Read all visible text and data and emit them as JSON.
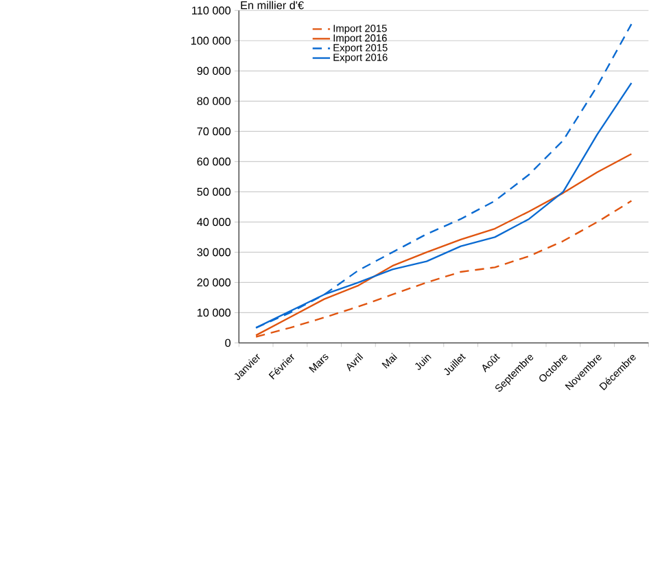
{
  "chart_data": {
    "type": "line",
    "ylabel": "En millier d'€",
    "categories": [
      "Janvier",
      "Février",
      "Mars",
      "Avril",
      "Mai",
      "Juin",
      "Juillet",
      "Août",
      "Septembre",
      "Octobre",
      "Novembre",
      "Décembre"
    ],
    "series": [
      {
        "name": "Import 2015",
        "color": "#e0540f",
        "line_style": "dashed",
        "values": [
          2000,
          5000,
          8400,
          12000,
          16000,
          20000,
          23500,
          25000,
          28700,
          33700,
          40000,
          47000
        ]
      },
      {
        "name": "Import 2016",
        "color": "#e0540f",
        "line_style": "solid",
        "values": [
          2500,
          8500,
          14500,
          19000,
          25500,
          30000,
          34200,
          37800,
          43500,
          49600,
          56500,
          62500
        ]
      },
      {
        "name": "Export 2015",
        "color": "#0a6ad1",
        "line_style": "dashed",
        "values": [
          5000,
          10000,
          16000,
          24000,
          30000,
          36000,
          41000,
          47000,
          55700,
          67000,
          85000,
          105500
        ]
      },
      {
        "name": "Export 2016",
        "color": "#0a6ad1",
        "line_style": "solid",
        "values": [
          5000,
          10500,
          16000,
          20000,
          24300,
          27000,
          32000,
          35000,
          41000,
          50000,
          69000,
          86000
        ]
      }
    ],
    "ylim": [
      0,
      110000
    ],
    "yticks": [
      0,
      {
        "value": 10000,
        "label": "10 000"
      },
      {
        "value": 20000,
        "label": "20 000"
      },
      {
        "value": 30000,
        "label": "30 000"
      },
      {
        "value": 40000,
        "label": "40 000"
      },
      {
        "value": 50000,
        "label": "50 000"
      },
      {
        "value": 60000,
        "label": "60 000"
      },
      {
        "value": 70000,
        "label": "70 000"
      },
      {
        "value": 80000,
        "label": "80 000"
      },
      {
        "value": 90000,
        "label": "90 000"
      },
      {
        "value": 100000,
        "label": "100 000"
      },
      {
        "value": 110000,
        "label": "110 000"
      }
    ],
    "grid": "y",
    "legend": "top left",
    "marker": "none"
  }
}
